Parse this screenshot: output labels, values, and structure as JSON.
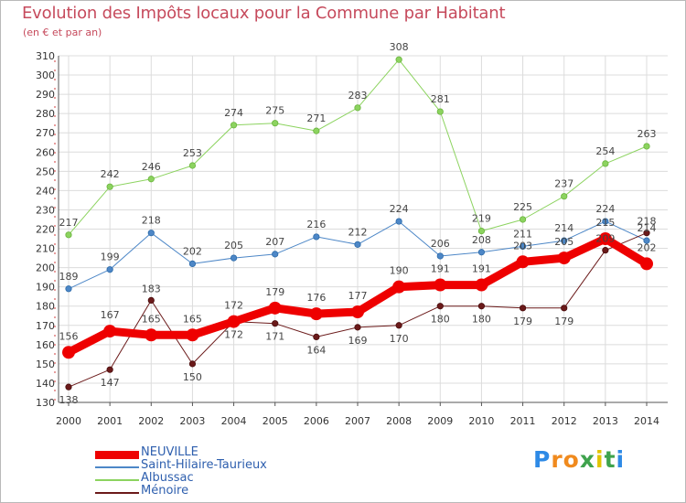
{
  "title": "Evolution des Impôts locaux pour la Commune par Habitant",
  "subtitle": "(en € et par an)",
  "brand": {
    "letters": [
      "P",
      "r",
      "o",
      "x",
      "i",
      "t",
      "i"
    ],
    "colors": [
      "#2e8ae6",
      "#f08a1e",
      "#f08a1e",
      "#3fa34d",
      "#e2c400",
      "#3fa34d",
      "#2e8ae6"
    ]
  },
  "chart_data": {
    "type": "line",
    "title": "Evolution des Impôts locaux pour la Commune par Habitant",
    "subtitle": "(en € et par an)",
    "xlabel": "",
    "ylabel": "",
    "x": [
      2000,
      2001,
      2002,
      2003,
      2004,
      2005,
      2006,
      2007,
      2008,
      2009,
      2010,
      2011,
      2012,
      2013,
      2014
    ],
    "x_tick_labels": [
      "2000",
      "2001",
      "2002",
      "2003",
      "2004",
      "2005",
      "2006",
      "2007",
      "2008",
      "2009",
      "2010",
      "2011",
      "2012",
      "2013",
      "2014"
    ],
    "ylim": [
      130,
      310
    ],
    "y_ticks": [
      130,
      140,
      150,
      160,
      170,
      180,
      190,
      200,
      210,
      220,
      230,
      240,
      250,
      260,
      270,
      280,
      290,
      300,
      310
    ],
    "grid": true,
    "legend_position": "bottom-left",
    "series": [
      {
        "name": "NEUVILLE",
        "color": "#ee0000",
        "values": [
          156,
          167,
          165,
          165,
          172,
          179,
          176,
          177,
          190,
          191,
          191,
          203,
          205,
          215,
          202
        ]
      },
      {
        "name": "Saint-Hilaire-Taurieux",
        "color": "#4d87c7",
        "values": [
          189,
          199,
          218,
          202,
          205,
          207,
          216,
          212,
          224,
          206,
          208,
          211,
          214,
          224,
          214
        ]
      },
      {
        "name": "Albussac",
        "color": "#8cd35f",
        "values": [
          217,
          242,
          246,
          253,
          274,
          275,
          271,
          283,
          308,
          281,
          219,
          225,
          237,
          254,
          263
        ]
      },
      {
        "name": "Ménoire",
        "color": "#6b1a1a",
        "values": [
          138,
          147,
          183,
          150,
          172,
          171,
          164,
          169,
          170,
          180,
          180,
          179,
          179,
          209,
          218
        ]
      }
    ]
  }
}
